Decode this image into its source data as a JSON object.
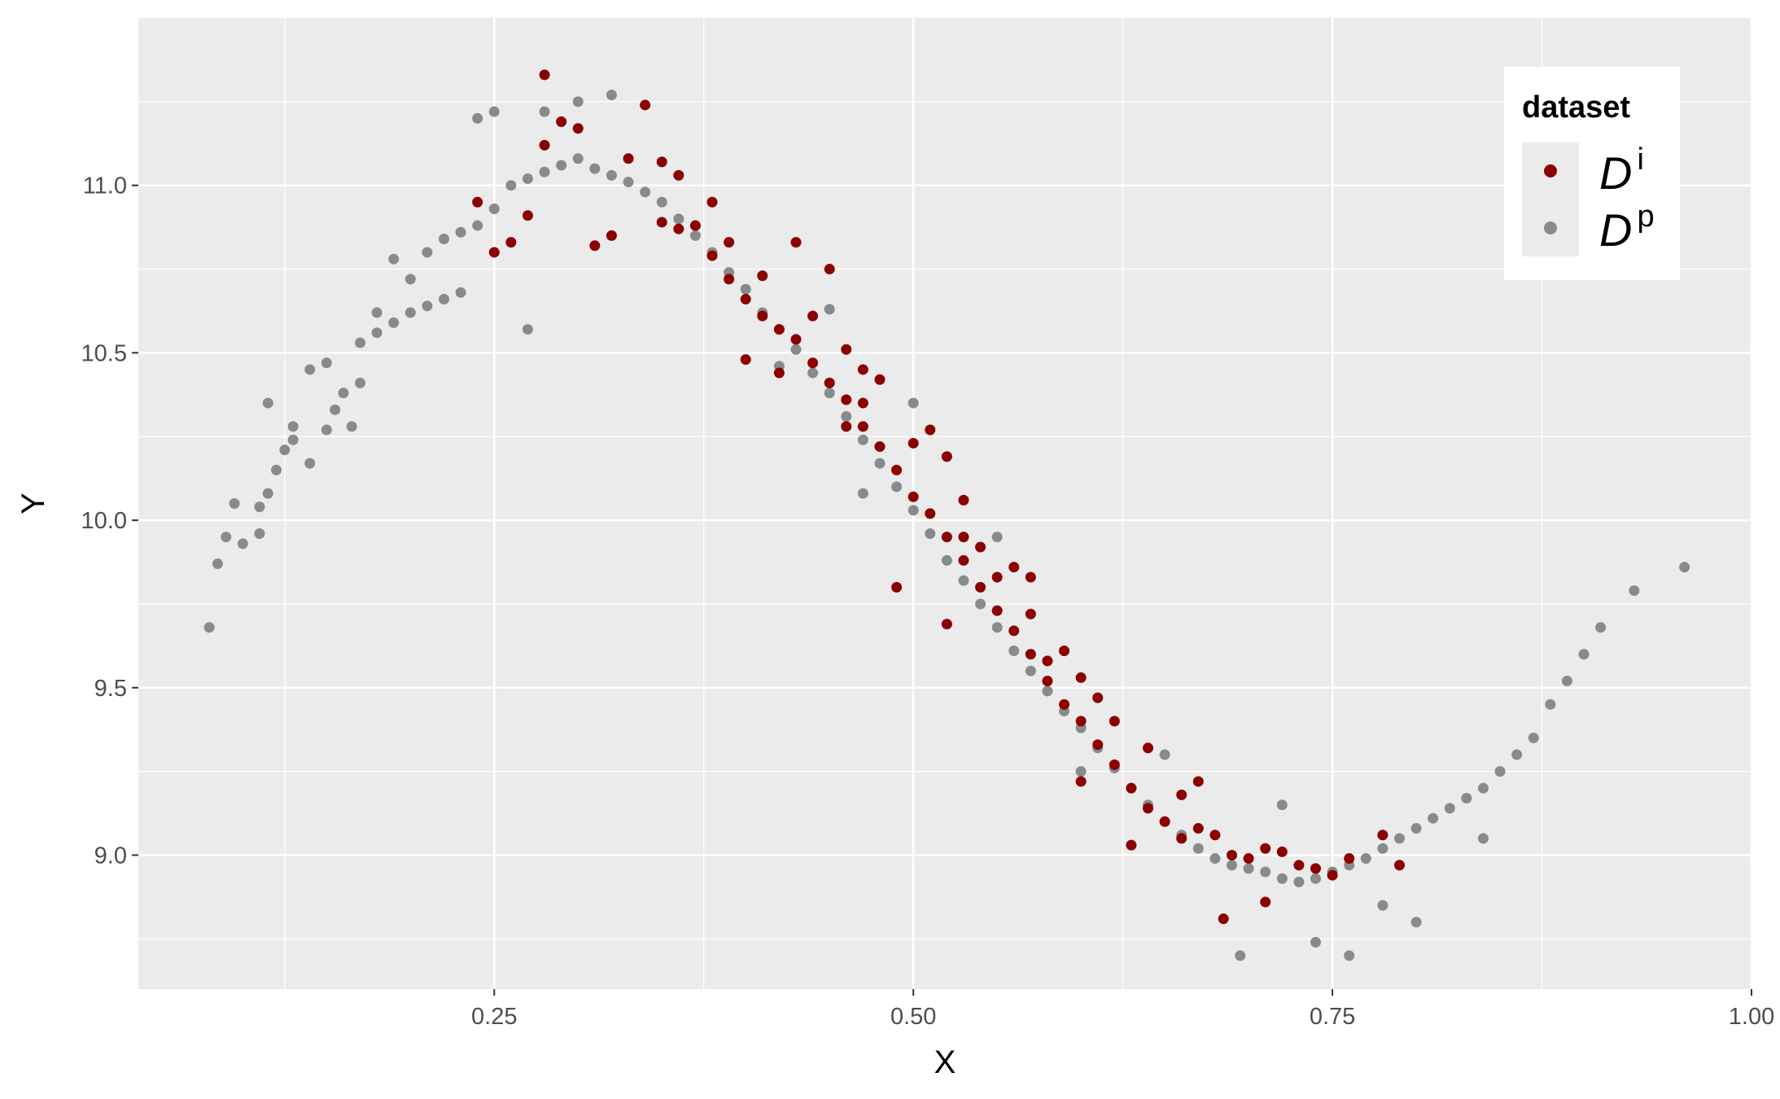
{
  "chart_data": {
    "type": "scatter",
    "title": "",
    "xlabel": "X",
    "ylabel": "Y",
    "xlim": [
      0.0377,
      1.0
    ],
    "ylim": [
      8.6,
      11.5
    ],
    "x_ticks": [
      0.25,
      0.5,
      0.75,
      1.0
    ],
    "x_tick_labels": [
      "0.25",
      "0.50",
      "0.75",
      "1.00"
    ],
    "y_ticks": [
      9.0,
      9.5,
      10.0,
      10.5,
      11.0
    ],
    "y_tick_labels": [
      "9.0",
      "9.5",
      "10.0",
      "10.5",
      "11.0"
    ],
    "grid": true,
    "background": "#ebebeb",
    "legend": {
      "title": "dataset",
      "placement": "top-right",
      "entries": [
        {
          "base": "D",
          "sup": "i",
          "color": "#8b0000"
        },
        {
          "base": "D",
          "sup": "p",
          "color": "#868c8c"
        }
      ]
    },
    "series": [
      {
        "legend_index": 1,
        "color": "#868c8c",
        "points": [
          [
            0.08,
            9.68
          ],
          [
            0.085,
            9.87
          ],
          [
            0.09,
            9.95
          ],
          [
            0.1,
            9.93
          ],
          [
            0.11,
            9.96
          ],
          [
            0.095,
            10.05
          ],
          [
            0.11,
            10.04
          ],
          [
            0.115,
            10.08
          ],
          [
            0.12,
            10.15
          ],
          [
            0.125,
            10.21
          ],
          [
            0.14,
            10.17
          ],
          [
            0.13,
            10.24
          ],
          [
            0.13,
            10.28
          ],
          [
            0.115,
            10.35
          ],
          [
            0.15,
            10.27
          ],
          [
            0.165,
            10.28
          ],
          [
            0.155,
            10.33
          ],
          [
            0.16,
            10.38
          ],
          [
            0.17,
            10.41
          ],
          [
            0.14,
            10.45
          ],
          [
            0.15,
            10.47
          ],
          [
            0.17,
            10.53
          ],
          [
            0.18,
            10.56
          ],
          [
            0.19,
            10.59
          ],
          [
            0.2,
            10.62
          ],
          [
            0.21,
            10.64
          ],
          [
            0.22,
            10.66
          ],
          [
            0.23,
            10.68
          ],
          [
            0.18,
            10.62
          ],
          [
            0.2,
            10.72
          ],
          [
            0.19,
            10.78
          ],
          [
            0.21,
            10.8
          ],
          [
            0.22,
            10.84
          ],
          [
            0.23,
            10.86
          ],
          [
            0.24,
            10.88
          ],
          [
            0.25,
            10.93
          ],
          [
            0.26,
            11.0
          ],
          [
            0.27,
            11.02
          ],
          [
            0.28,
            11.04
          ],
          [
            0.29,
            11.06
          ],
          [
            0.3,
            11.08
          ],
          [
            0.31,
            11.05
          ],
          [
            0.32,
            11.03
          ],
          [
            0.33,
            11.01
          ],
          [
            0.34,
            10.98
          ],
          [
            0.35,
            10.95
          ],
          [
            0.36,
            10.9
          ],
          [
            0.37,
            10.85
          ],
          [
            0.38,
            10.8
          ],
          [
            0.39,
            10.74
          ],
          [
            0.4,
            10.69
          ],
          [
            0.41,
            10.62
          ],
          [
            0.42,
            10.57
          ],
          [
            0.43,
            10.51
          ],
          [
            0.44,
            10.44
          ],
          [
            0.45,
            10.38
          ],
          [
            0.46,
            10.31
          ],
          [
            0.47,
            10.24
          ],
          [
            0.48,
            10.17
          ],
          [
            0.49,
            10.1
          ],
          [
            0.5,
            10.03
          ],
          [
            0.51,
            9.96
          ],
          [
            0.52,
            9.88
          ],
          [
            0.53,
            9.82
          ],
          [
            0.54,
            9.75
          ],
          [
            0.55,
            9.68
          ],
          [
            0.56,
            9.61
          ],
          [
            0.57,
            9.55
          ],
          [
            0.58,
            9.49
          ],
          [
            0.59,
            9.43
          ],
          [
            0.6,
            9.38
          ],
          [
            0.61,
            9.32
          ],
          [
            0.62,
            9.26
          ],
          [
            0.63,
            9.2
          ],
          [
            0.64,
            9.15
          ],
          [
            0.65,
            9.1
          ],
          [
            0.66,
            9.06
          ],
          [
            0.67,
            9.02
          ],
          [
            0.68,
            8.99
          ],
          [
            0.69,
            8.97
          ],
          [
            0.7,
            8.96
          ],
          [
            0.71,
            8.95
          ],
          [
            0.72,
            8.93
          ],
          [
            0.73,
            8.92
          ],
          [
            0.74,
            8.93
          ],
          [
            0.75,
            8.95
          ],
          [
            0.76,
            8.97
          ],
          [
            0.77,
            8.99
          ],
          [
            0.78,
            9.02
          ],
          [
            0.79,
            9.05
          ],
          [
            0.8,
            9.08
          ],
          [
            0.81,
            9.11
          ],
          [
            0.82,
            9.14
          ],
          [
            0.83,
            9.17
          ],
          [
            0.84,
            9.2
          ],
          [
            0.85,
            9.25
          ],
          [
            0.86,
            9.3
          ],
          [
            0.87,
            9.35
          ],
          [
            0.88,
            9.45
          ],
          [
            0.89,
            9.52
          ],
          [
            0.9,
            9.6
          ],
          [
            0.91,
            9.68
          ],
          [
            0.93,
            9.79
          ],
          [
            0.96,
            9.86
          ],
          [
            0.695,
            8.7
          ],
          [
            0.76,
            8.7
          ],
          [
            0.74,
            8.74
          ],
          [
            0.27,
            10.57
          ],
          [
            0.28,
            11.22
          ],
          [
            0.3,
            11.25
          ],
          [
            0.32,
            11.27
          ],
          [
            0.25,
            11.22
          ],
          [
            0.24,
            11.2
          ],
          [
            0.42,
            10.46
          ],
          [
            0.47,
            10.08
          ],
          [
            0.6,
            9.25
          ],
          [
            0.72,
            9.15
          ],
          [
            0.78,
            8.85
          ],
          [
            0.8,
            8.8
          ],
          [
            0.84,
            9.05
          ],
          [
            0.55,
            9.95
          ],
          [
            0.5,
            10.35
          ],
          [
            0.45,
            10.63
          ],
          [
            0.65,
            9.3
          ]
        ]
      },
      {
        "legend_index": 0,
        "color": "#8b0000",
        "points": [
          [
            0.28,
            11.33
          ],
          [
            0.24,
            10.95
          ],
          [
            0.25,
            10.8
          ],
          [
            0.26,
            10.83
          ],
          [
            0.27,
            10.91
          ],
          [
            0.28,
            11.12
          ],
          [
            0.29,
            11.19
          ],
          [
            0.3,
            11.17
          ],
          [
            0.31,
            10.82
          ],
          [
            0.32,
            10.85
          ],
          [
            0.33,
            11.08
          ],
          [
            0.34,
            11.24
          ],
          [
            0.35,
            10.89
          ],
          [
            0.36,
            10.87
          ],
          [
            0.37,
            10.88
          ],
          [
            0.38,
            10.79
          ],
          [
            0.39,
            10.72
          ],
          [
            0.4,
            10.66
          ],
          [
            0.41,
            10.61
          ],
          [
            0.42,
            10.57
          ],
          [
            0.43,
            10.54
          ],
          [
            0.44,
            10.47
          ],
          [
            0.45,
            10.41
          ],
          [
            0.46,
            10.36
          ],
          [
            0.47,
            10.28
          ],
          [
            0.48,
            10.22
          ],
          [
            0.49,
            10.15
          ],
          [
            0.5,
            10.07
          ],
          [
            0.51,
            10.02
          ],
          [
            0.52,
            9.95
          ],
          [
            0.53,
            9.88
          ],
          [
            0.54,
            9.8
          ],
          [
            0.55,
            9.73
          ],
          [
            0.56,
            9.67
          ],
          [
            0.57,
            9.6
          ],
          [
            0.58,
            9.52
          ],
          [
            0.59,
            9.45
          ],
          [
            0.6,
            9.4
          ],
          [
            0.61,
            9.33
          ],
          [
            0.62,
            9.27
          ],
          [
            0.63,
            9.2
          ],
          [
            0.64,
            9.14
          ],
          [
            0.65,
            9.1
          ],
          [
            0.66,
            9.05
          ],
          [
            0.67,
            9.08
          ],
          [
            0.68,
            9.06
          ],
          [
            0.69,
            9.0
          ],
          [
            0.7,
            8.99
          ],
          [
            0.71,
            9.02
          ],
          [
            0.72,
            9.01
          ],
          [
            0.73,
            8.97
          ],
          [
            0.74,
            8.96
          ],
          [
            0.75,
            8.94
          ],
          [
            0.76,
            8.99
          ],
          [
            0.78,
            9.06
          ],
          [
            0.79,
            8.97
          ],
          [
            0.685,
            8.81
          ],
          [
            0.71,
            8.86
          ],
          [
            0.63,
            9.03
          ],
          [
            0.49,
            9.8
          ],
          [
            0.43,
            10.83
          ],
          [
            0.45,
            10.75
          ],
          [
            0.44,
            10.61
          ],
          [
            0.46,
            10.51
          ],
          [
            0.48,
            10.42
          ],
          [
            0.47,
            10.45
          ],
          [
            0.5,
            10.23
          ],
          [
            0.51,
            10.27
          ],
          [
            0.52,
            10.19
          ],
          [
            0.53,
            9.95
          ],
          [
            0.54,
            9.92
          ],
          [
            0.56,
            9.86
          ],
          [
            0.57,
            9.83
          ],
          [
            0.58,
            9.58
          ],
          [
            0.59,
            9.61
          ],
          [
            0.61,
            9.47
          ],
          [
            0.62,
            9.4
          ],
          [
            0.64,
            9.32
          ],
          [
            0.6,
            9.53
          ],
          [
            0.55,
            9.83
          ],
          [
            0.52,
            9.69
          ],
          [
            0.41,
            10.73
          ],
          [
            0.39,
            10.83
          ],
          [
            0.38,
            10.95
          ],
          [
            0.36,
            11.03
          ],
          [
            0.35,
            11.07
          ],
          [
            0.4,
            10.48
          ],
          [
            0.42,
            10.44
          ],
          [
            0.46,
            10.28
          ],
          [
            0.47,
            10.35
          ],
          [
            0.53,
            10.06
          ],
          [
            0.57,
            9.72
          ],
          [
            0.6,
            9.22
          ],
          [
            0.66,
            9.18
          ],
          [
            0.67,
            9.22
          ]
        ]
      }
    ]
  }
}
